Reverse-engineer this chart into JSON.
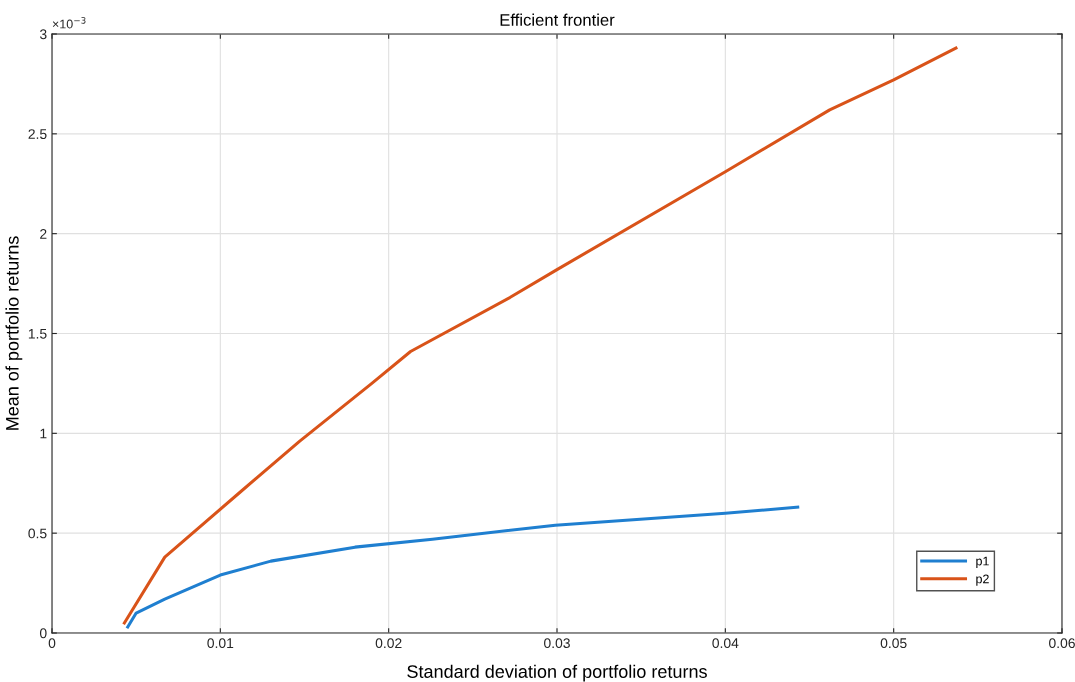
{
  "chart_data": {
    "type": "line",
    "title": "Efficient frontier",
    "xlabel": "Standard deviation of portfolio returns",
    "ylabel": "Mean of portfolio returns",
    "annotations": [
      "×10$^{−3}$"
    ],
    "series": [
      {
        "name": "p1",
        "color": "#1f7fd0",
        "x": [
          0.0045,
          0.005,
          0.0067,
          0.01,
          0.013,
          0.018,
          0.0226,
          0.0299,
          0.04,
          0.0443
        ],
        "values": [
          0.03,
          0.1,
          0.17,
          0.29,
          0.36,
          0.43,
          0.47,
          0.54,
          0.6,
          0.63
        ]
      },
      {
        "name": "p2",
        "color": "#d95319",
        "x": [
          0.0043,
          0.0067,
          0.0111,
          0.0147,
          0.019,
          0.0213,
          0.0272,
          0.03,
          0.04,
          0.0462,
          0.05,
          0.0537
        ],
        "values": [
          0.05,
          0.38,
          0.7,
          0.96,
          1.25,
          1.41,
          1.68,
          1.82,
          2.31,
          2.62,
          2.77,
          2.93
        ]
      }
    ],
    "xlim": [
      0,
      0.06
    ],
    "xticks": [
      0,
      0.01,
      0.02,
      0.03,
      0.04,
      0.05,
      0.06
    ],
    "ylim": [
      0,
      3
    ],
    "yticks": [
      0,
      0.5,
      1,
      1.5,
      2,
      2.5,
      3
    ],
    "grid": true,
    "legend": "bottom right",
    "line_style": "solid",
    "marker": "none"
  }
}
